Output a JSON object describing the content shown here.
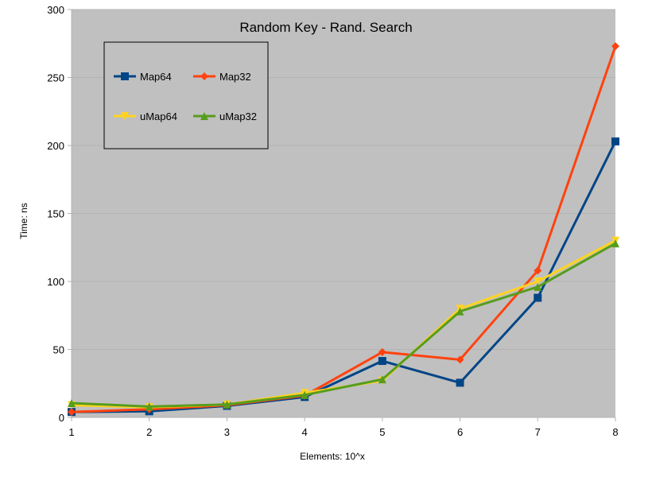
{
  "chart_data": {
    "type": "line",
    "title": "Random Key - Rand. Search",
    "xlabel": "Elements: 10^x",
    "ylabel": "Time: ns",
    "x": [
      1,
      2,
      3,
      4,
      5,
      6,
      7,
      8
    ],
    "xlim": [
      1,
      8
    ],
    "ylim": [
      0,
      300
    ],
    "yticks": [
      0,
      50,
      100,
      150,
      200,
      250,
      300
    ],
    "xticks": [
      1,
      2,
      3,
      4,
      5,
      6,
      7,
      8
    ],
    "grid": true,
    "legend_position": "top-left",
    "series": [
      {
        "name": "Map64",
        "color": "#004586",
        "marker": "square",
        "values": [
          4,
          4.5,
          8.5,
          15,
          41.5,
          25.5,
          88,
          203
        ]
      },
      {
        "name": "Map32",
        "color": "#ff420e",
        "marker": "diamond",
        "values": [
          4,
          6,
          9,
          16,
          48,
          42.5,
          108,
          273
        ]
      },
      {
        "name": "uMap64",
        "color": "#ffd320",
        "marker": "triangle-down",
        "values": [
          9,
          7.5,
          9.5,
          18,
          27,
          80,
          100,
          130
        ]
      },
      {
        "name": "uMap32",
        "color": "#579d1c",
        "marker": "triangle",
        "values": [
          10.5,
          8,
          9.5,
          16.5,
          28,
          78,
          96,
          128
        ]
      }
    ]
  }
}
